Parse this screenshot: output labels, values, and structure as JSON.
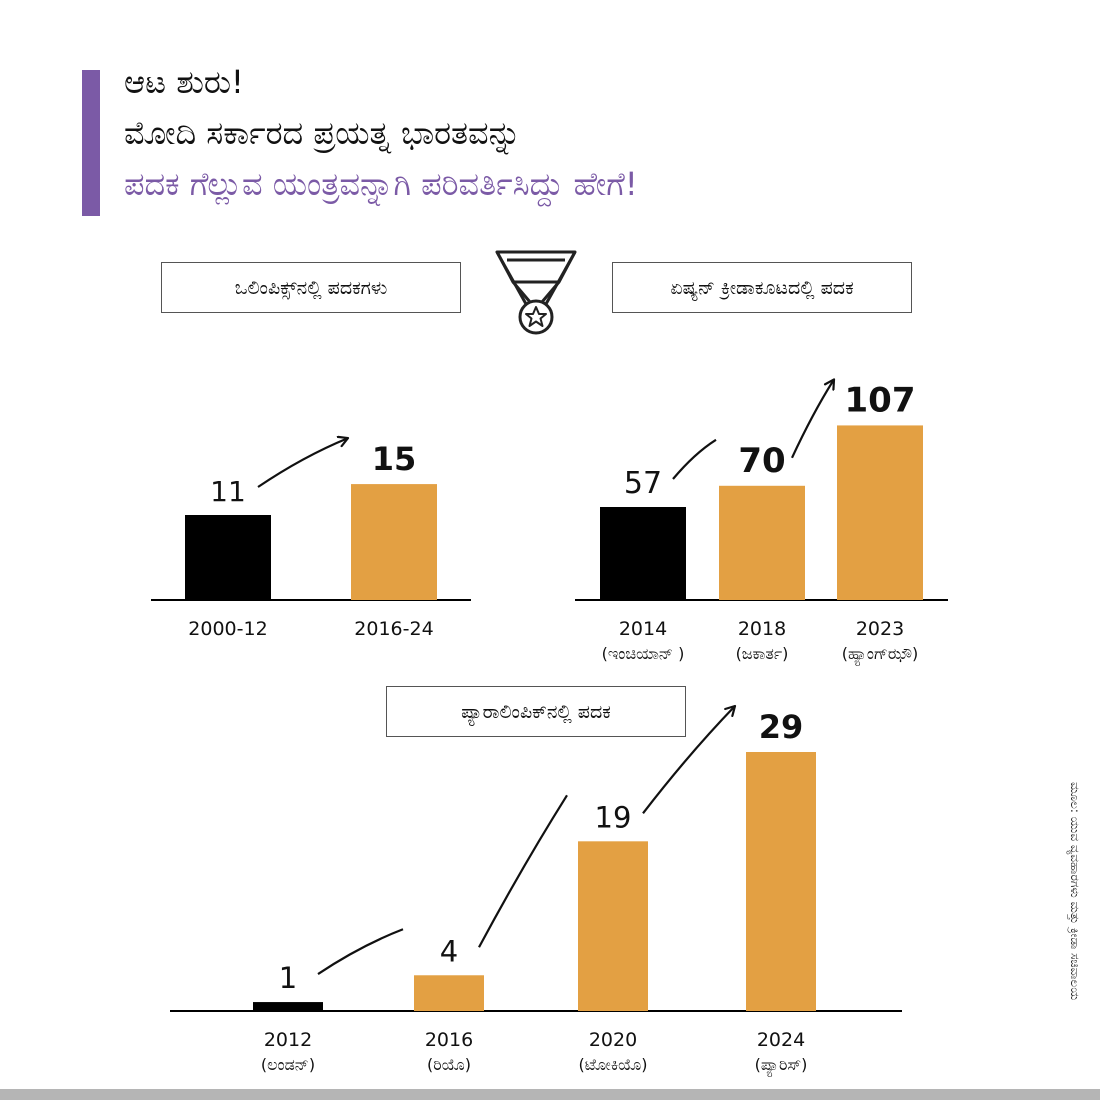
{
  "header": {
    "line1": "ಆಟ ಶುರು!",
    "line2": "ಮೋದಿ ಸರ್ಕಾರದ ಪ್ರಯತ್ನ ಭಾರತವನ್ನು",
    "line3": "ಪದಕ ಗೆಲ್ಲುವ ಯಂತ್ರವನ್ನಾಗಿ ಪರಿವರ್ತಿಸಿದ್ದು ಹೇಗೆ!"
  },
  "source_note": "ಮೂಲ: ಯುವ ವ್ಯವಹಾರಗಳು ಮತ್ತು ಕ್ರೀಡಾ ಸಚಿವಾಲಯ",
  "colors": {
    "accent": "#7b5aa6",
    "highlight": "#e3a043",
    "baseline": "#000000"
  },
  "medal_icon": "medal-icon",
  "chart_data": [
    {
      "type": "bar",
      "title": "ಒಲಿಂಪಿಕ್ಸ್‌ನಲ್ಲಿ ಪದಕಗಳು",
      "categories": [
        "2000-12",
        "2016-24"
      ],
      "sublabels": [
        "",
        ""
      ],
      "values": [
        11,
        15
      ],
      "bar_colors": [
        "#000000",
        "#e3a043"
      ],
      "ylim": [
        0,
        20
      ]
    },
    {
      "type": "bar",
      "title": "ಏಷ್ಯನ್ ಕ್ರೀಡಾಕೂಟದಲ್ಲಿ ಪದಕ",
      "categories": [
        "2014",
        "2018",
        "2023"
      ],
      "sublabels": [
        "(ಇಂಚಿಯಾನ್ )",
        "(ಜಕಾರ್ತ)",
        "(ಹ್ಯಾಂಗ್‌ಝೌ)"
      ],
      "values": [
        57,
        70,
        107
      ],
      "bar_colors": [
        "#000000",
        "#e3a043",
        "#e3a043"
      ],
      "ylim": [
        0,
        110
      ]
    },
    {
      "type": "bar",
      "title": "ಪ್ಯಾರಾಲಿಂಪಿಕ್‌ನಲ್ಲಿ ಪದಕ",
      "categories": [
        "2012",
        "2016",
        "2020",
        "2024"
      ],
      "sublabels": [
        "(ಲಂಡನ್)",
        "(ರಿಯೊ)",
        "(ಟೋಕಿಯೊ)",
        "(ಪ್ಯಾರಿಸ್)"
      ],
      "values": [
        1,
        4,
        19,
        29
      ],
      "bar_colors": [
        "#000000",
        "#e3a043",
        "#e3a043",
        "#e3a043"
      ],
      "ylim": [
        0,
        30
      ]
    }
  ]
}
